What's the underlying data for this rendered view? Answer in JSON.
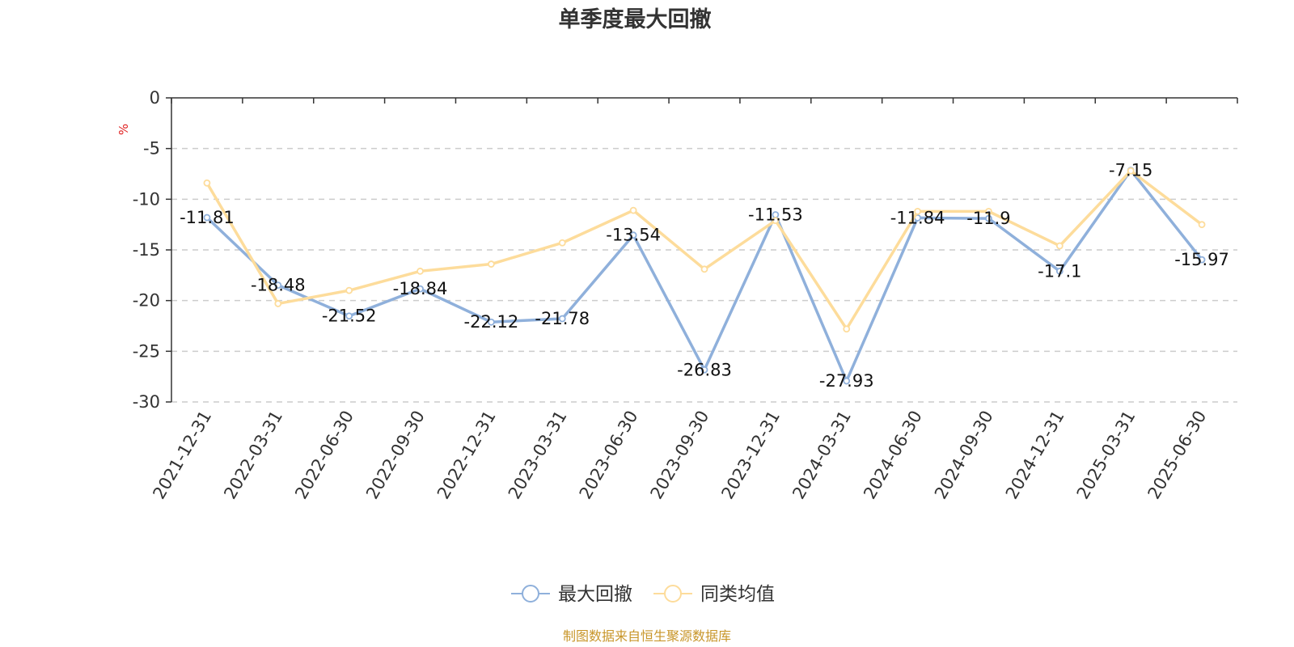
{
  "chart_data": {
    "type": "line",
    "title": "单季度最大回撤",
    "ylabel": "%",
    "ylim": [
      -30,
      0
    ],
    "yticks": [
      0,
      -5,
      -10,
      -15,
      -20,
      -25,
      -30
    ],
    "grid": true,
    "legend_position": "bottom",
    "categories": [
      "2021-12-31",
      "2022-03-31",
      "2022-06-30",
      "2022-09-30",
      "2022-12-31",
      "2023-03-31",
      "2023-06-30",
      "2023-09-30",
      "2023-12-31",
      "2024-03-31",
      "2024-06-30",
      "2024-09-30",
      "2024-12-31",
      "2025-03-31",
      "2025-06-30"
    ],
    "series": [
      {
        "name": "最大回撤",
        "color": "#8fb0db",
        "labels": true,
        "values": [
          -11.81,
          -18.48,
          -21.52,
          -18.84,
          -22.12,
          -21.78,
          -13.54,
          -26.83,
          -11.53,
          -27.93,
          -11.84,
          -11.9,
          -17.1,
          -7.15,
          -15.97
        ]
      },
      {
        "name": "同类均值",
        "color": "#fddc9b",
        "labels": false,
        "values": [
          -8.4,
          -20.3,
          -19.0,
          -17.1,
          -16.4,
          -14.3,
          -11.1,
          -16.9,
          -12.1,
          -22.8,
          -11.2,
          -11.2,
          -14.6,
          -7.2,
          -12.5
        ]
      }
    ],
    "source": "制图数据来自恒生聚源数据库",
    "source_color": "#c8962a",
    "unit_color": "#e02020"
  }
}
